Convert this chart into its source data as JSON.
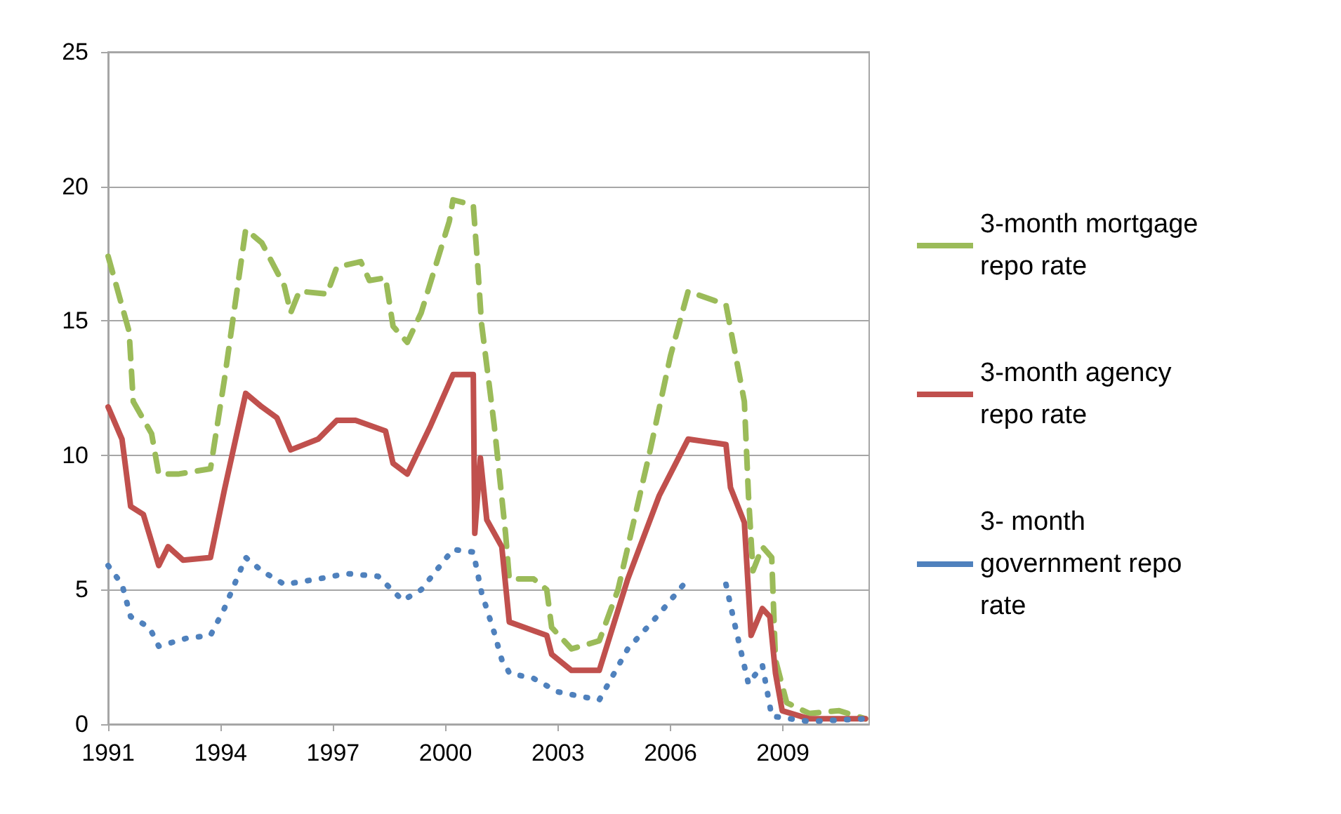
{
  "chart_data": {
    "type": "line",
    "xlim": [
      1991,
      2011.3
    ],
    "xticks": [
      1991,
      1994,
      1997,
      2000,
      2003,
      2006,
      2009
    ],
    "ylim": [
      0,
      25
    ],
    "yticks": [
      0,
      5,
      10,
      15,
      20,
      25
    ],
    "grid": "y",
    "legend": "right",
    "marker": "none",
    "series": [
      {
        "name": "3-month mortgage repo rate",
        "color": "#9bbb59",
        "line_style": "dashed",
        "x": [
          1991.0,
          1991.56,
          1991.67,
          1992.16,
          1992.35,
          1992.87,
          1993.73,
          1994.1,
          1994.67,
          1995.1,
          1995.7,
          1995.87,
          1996.1,
          1996.84,
          1997.1,
          1997.74,
          1997.97,
          1998.4,
          1998.6,
          1998.98,
          1999.35,
          2000.1,
          2000.2,
          2000.74,
          2000.85,
          2000.96,
          2001.3,
          2001.6,
          2001.7,
          2002.35,
          2002.7,
          2002.83,
          2003.36,
          2004.1,
          2004.6,
          2005.46,
          2006.0,
          2006.47,
          2007.48,
          2007.97,
          2008.08,
          2008.2,
          2008.45,
          2008.7,
          2008.8,
          2009.1,
          2009.7,
          2010.5,
          2011.2
        ],
        "values": [
          17.4,
          14.6,
          12.0,
          10.8,
          9.3,
          9.3,
          9.5,
          12.8,
          18.4,
          17.9,
          16.3,
          15.3,
          16.1,
          16.0,
          17.0,
          17.2,
          16.5,
          16.6,
          14.8,
          14.2,
          15.3,
          18.7,
          19.5,
          19.3,
          17.2,
          14.9,
          11.1,
          7.1,
          5.4,
          5.4,
          5.0,
          3.6,
          2.8,
          3.1,
          5.0,
          10.2,
          13.7,
          16.1,
          15.6,
          12.0,
          8.5,
          5.7,
          6.6,
          6.2,
          2.4,
          0.8,
          0.4,
          0.5,
          0.2
        ]
      },
      {
        "name": "3-month agency repo rate",
        "color": "#c0504d",
        "line_style": "solid",
        "x": [
          1991.0,
          1991.37,
          1991.6,
          1991.94,
          1992.35,
          1992.6,
          1993.0,
          1993.73,
          1994.1,
          1994.67,
          1995.1,
          1995.5,
          1995.87,
          1996.6,
          1997.1,
          1997.6,
          1998.4,
          1998.6,
          1998.98,
          1999.6,
          2000.2,
          2000.74,
          2000.78,
          2000.93,
          2001.1,
          2001.5,
          2001.7,
          2002.1,
          2002.7,
          2002.83,
          2003.36,
          2004.1,
          2004.86,
          2005.7,
          2006.47,
          2007.48,
          2007.6,
          2007.97,
          2008.15,
          2008.45,
          2008.65,
          2008.8,
          2008.98,
          2009.7,
          2010.5,
          2011.2
        ],
        "values": [
          11.8,
          10.6,
          8.1,
          7.8,
          5.9,
          6.6,
          6.1,
          6.2,
          8.7,
          12.3,
          11.8,
          11.4,
          10.2,
          10.6,
          11.3,
          11.3,
          10.9,
          9.7,
          9.3,
          11.1,
          13.0,
          13.0,
          7.1,
          9.9,
          7.6,
          6.6,
          3.8,
          3.6,
          3.3,
          2.6,
          2.0,
          2.0,
          5.4,
          8.5,
          10.6,
          10.4,
          8.8,
          7.5,
          3.3,
          4.3,
          4.0,
          1.9,
          0.5,
          0.2,
          0.2,
          0.2
        ]
      },
      {
        "name": "3- month government repo rate",
        "color": "#4f81bd",
        "line_style": "dotted",
        "x": [
          1991.0,
          1991.37,
          1991.6,
          1992.1,
          1992.35,
          1993.1,
          1993.73,
          1994.1,
          1994.67,
          1995.1,
          1995.7,
          1996.6,
          1997.37,
          1998.2,
          1998.86,
          1999.35,
          2000.2,
          2000.74,
          2000.96,
          2001.3,
          2001.5,
          2001.6,
          2001.7,
          2002.35,
          2003.0,
          2004.1,
          2004.86,
          2005.7,
          2006.47,
          2006.9,
          2007.48,
          2007.7,
          2008.08,
          2008.45,
          2008.7,
          2009.7,
          2011.2
        ],
        "values": [
          5.9,
          5.2,
          4.0,
          3.6,
          2.9,
          3.2,
          3.3,
          4.3,
          6.2,
          5.7,
          5.2,
          5.4,
          5.6,
          5.5,
          4.6,
          5.0,
          6.5,
          6.4,
          4.9,
          3.4,
          2.4,
          2.2,
          1.9,
          1.7,
          1.2,
          0.9,
          2.8,
          4.1,
          5.4,
          null,
          5.2,
          3.8,
          1.5,
          2.2,
          0.3,
          0.1,
          0.2
        ]
      }
    ]
  }
}
